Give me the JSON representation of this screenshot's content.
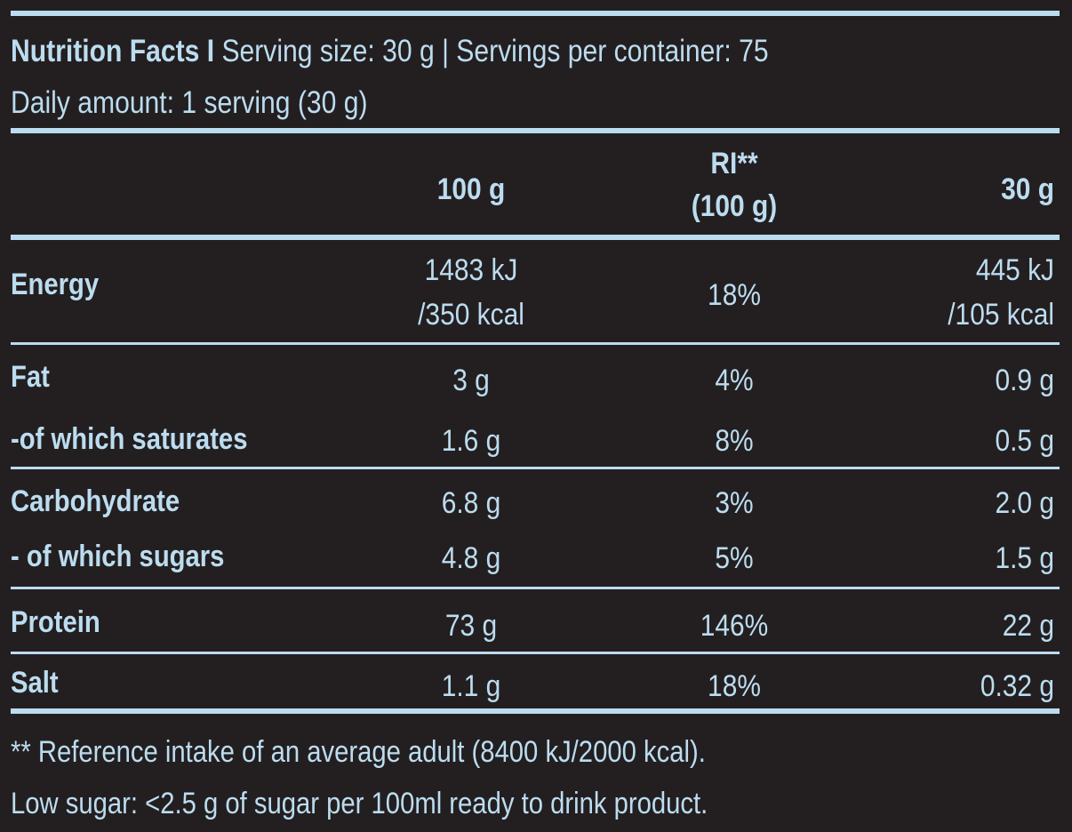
{
  "header": {
    "title": "Nutrition Facts I",
    "serving_size": " Serving size: 30 g | Servings per container: 75",
    "daily_amount": "Daily amount: 1 serving (30 g)"
  },
  "columns": {
    "per_100g": "100 g",
    "ri_line1": "RI**",
    "ri_line2": "(100 g)",
    "per_serving": "30 g"
  },
  "rows": {
    "energy": {
      "label": "Energy",
      "v100_line1": "1483 kJ",
      "v100_line2": "/350 kcal",
      "ri": "18%",
      "vserv_line1": "445 kJ",
      "vserv_line2": "/105 kcal"
    },
    "fat": {
      "label": "Fat",
      "v100": "3 g",
      "ri": "4%",
      "vserv": "0.9 g"
    },
    "saturates": {
      "label": "-of which saturates",
      "v100": "1.6 g",
      "ri": "8%",
      "vserv": "0.5 g"
    },
    "carbohydrate": {
      "label": "Carbohydrate",
      "v100": "6.8 g",
      "ri": "3%",
      "vserv": "2.0 g"
    },
    "sugars": {
      "label": "- of which sugars",
      "v100": "4.8 g",
      "ri": "5%",
      "vserv": "1.5 g"
    },
    "protein": {
      "label": "Protein",
      "v100": "73 g",
      "ri": "146%",
      "vserv": "22 g"
    },
    "salt": {
      "label": "Salt",
      "v100": "1.1 g",
      "ri": "18%",
      "vserv": "0.32 g"
    }
  },
  "footnotes": {
    "reference": "** Reference intake of an average adult (8400 kJ/2000 kcal).",
    "low_sugar": "Low sugar: <2.5 g of sugar per 100ml ready to drink product."
  },
  "colors": {
    "background": "#231f20",
    "text": "#bcdcef",
    "rule": "#bcdcef"
  }
}
